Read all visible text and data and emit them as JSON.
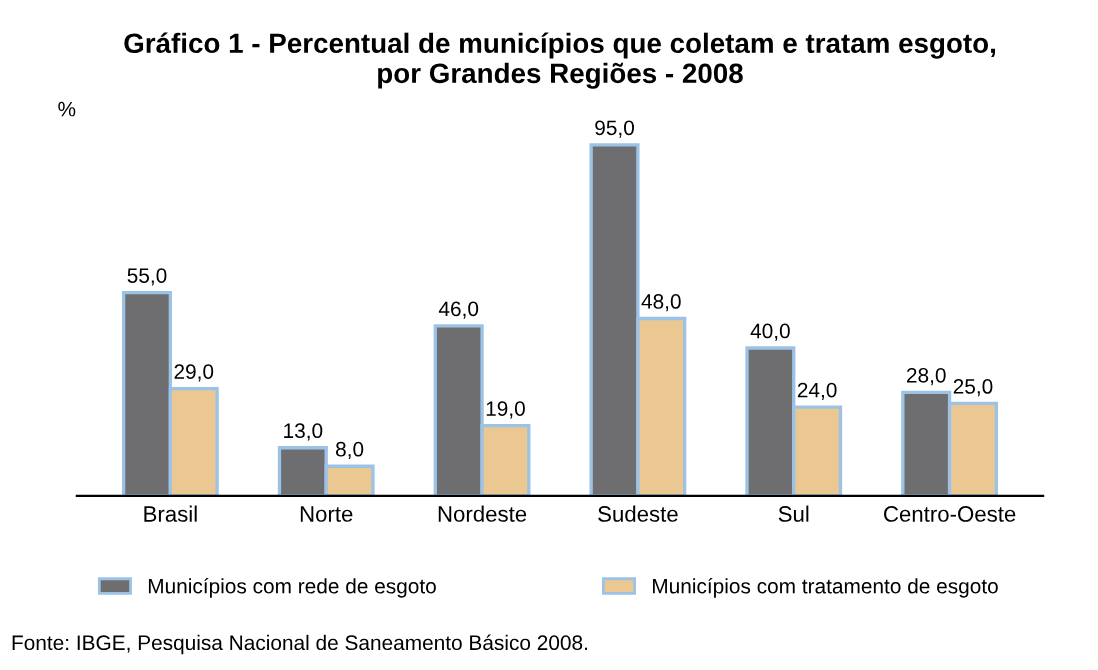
{
  "chart_data": {
    "type": "bar",
    "title": "Gráfico 1 - Percentual de municípios que coletam e tratam esgoto,\npor Grandes Regiões - 2008",
    "ylabel": "%",
    "categories": [
      "Brasil",
      "Norte",
      "Nordeste",
      "Sudeste",
      "Sul",
      "Centro-Oeste"
    ],
    "series": [
      {
        "name": "Municípios com rede de esgoto",
        "color": "#6e6e70",
        "values": [
          55.0,
          13.0,
          46.0,
          95.0,
          40.0,
          28.0
        ],
        "value_labels": [
          "55,0",
          "13,0",
          "46,0",
          "95,0",
          "40,0",
          "28,0"
        ]
      },
      {
        "name": "Municípios com tratamento de esgoto",
        "color": "#ebc891",
        "values": [
          29.0,
          8.0,
          19.0,
          48.0,
          24.0,
          25.0
        ],
        "value_labels": [
          "29,0",
          "8,0",
          "19,0",
          "48,0",
          "24,0",
          "25,0"
        ]
      }
    ],
    "legend": "bottom",
    "grid": false,
    "tick_labels": "x",
    "annotations": [
      "Fonte: IBGE, Pesquisa Nacional de Saneamento Básico 2008."
    ]
  }
}
